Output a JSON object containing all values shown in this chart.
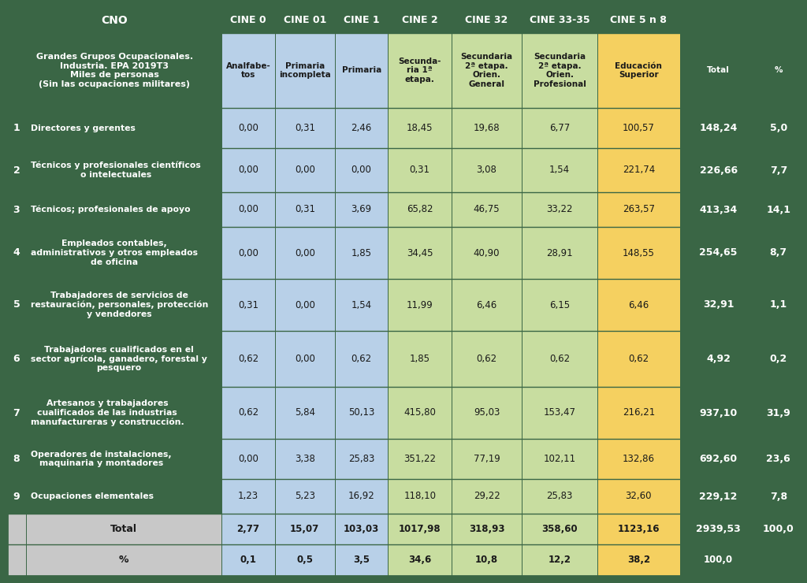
{
  "col_headers_row1_cine": [
    "CINE 0",
    "CINE 01",
    "CINE 1",
    "CINE 2",
    "CINE 32",
    "CINE 33-35",
    "CINE 5 n 8"
  ],
  "col_headers_row2_left": "Grandes Grupos Ocupacionales.\nIndustria. EPA 2019T3\nMiles de personas\n(Sin las ocupaciones militares)",
  "col_headers_row2_data": [
    "Analfabe-\ntos",
    "Primaria\nincompleta",
    "Primaria",
    "Secunda-\nria 1ª\netapa.",
    "Secundaria\n2ª etapa.\nOrien.\nGeneral",
    "Secundaria\n2ª etapa.\nOrien.\nProfesional",
    "Educación\nSuperior",
    "Total",
    "%"
  ],
  "rows": [
    {
      "num": "1",
      "label": "Directores y gerentes",
      "values": [
        "0,00",
        "0,31",
        "2,46",
        "18,45",
        "19,68",
        "6,77",
        "100,57",
        "148,24",
        "5,0"
      ]
    },
    {
      "num": "2",
      "label": "Técnicos y profesionales científicos\no intelectuales",
      "values": [
        "0,00",
        "0,00",
        "0,00",
        "0,31",
        "3,08",
        "1,54",
        "221,74",
        "226,66",
        "7,7"
      ]
    },
    {
      "num": "3",
      "label": "Técnicos; profesionales de apoyo",
      "values": [
        "0,00",
        "0,31",
        "3,69",
        "65,82",
        "46,75",
        "33,22",
        "263,57",
        "413,34",
        "14,1"
      ]
    },
    {
      "num": "4",
      "label": "Empleados contables,\nadministrativos y otros empleados\nde oficina",
      "values": [
        "0,00",
        "0,00",
        "1,85",
        "34,45",
        "40,90",
        "28,91",
        "148,55",
        "254,65",
        "8,7"
      ]
    },
    {
      "num": "5",
      "label": "Trabajadores de servicios de\nrestauración, personales, protección\ny vendedores",
      "values": [
        "0,31",
        "0,00",
        "1,54",
        "11,99",
        "6,46",
        "6,15",
        "6,46",
        "32,91",
        "1,1"
      ]
    },
    {
      "num": "6",
      "label": "Trabajadores cualificados en el\nsector agrícola, ganadero, forestal y\npesquero",
      "values": [
        "0,62",
        "0,00",
        "0,62",
        "1,85",
        "0,62",
        "0,62",
        "0,62",
        "4,92",
        "0,2"
      ]
    },
    {
      "num": "7",
      "label": "Artesanos y trabajadores\ncualificados de las industrias\nmanufactureras y construcción.",
      "values": [
        "0,62",
        "5,84",
        "50,13",
        "415,80",
        "95,03",
        "153,47",
        "216,21",
        "937,10",
        "31,9"
      ]
    },
    {
      "num": "8",
      "label": "Operadores de instalaciones,\nmaquinaria y montadores",
      "values": [
        "0,00",
        "3,38",
        "25,83",
        "351,22",
        "77,19",
        "102,11",
        "132,86",
        "692,60",
        "23,6"
      ]
    },
    {
      "num": "9",
      "label": "Ocupaciones elementales",
      "values": [
        "1,23",
        "5,23",
        "16,92",
        "118,10",
        "29,22",
        "25,83",
        "32,60",
        "229,12",
        "7,8"
      ]
    }
  ],
  "total_row": {
    "label": "Total",
    "values": [
      "2,77",
      "15,07",
      "103,03",
      "1017,98",
      "318,93",
      "358,60",
      "1123,16",
      "2939,53",
      "100,0"
    ]
  },
  "pct_row": {
    "label": "%",
    "values": [
      "0,1",
      "0,5",
      "3,5",
      "34,6",
      "10,8",
      "12,2",
      "38,2",
      "100,0",
      ""
    ]
  },
  "green_dark": "#3a6645",
  "green_header": "#3a6645",
  "blue_light": "#b8d0e8",
  "green_light": "#c8dda0",
  "yellow_light": "#f5d060",
  "white": "#ffffff",
  "gray_total": "#c8c8c8",
  "text_dark": "#1a1a1a",
  "figsize": [
    10.24,
    7.4
  ],
  "dpi": 100
}
